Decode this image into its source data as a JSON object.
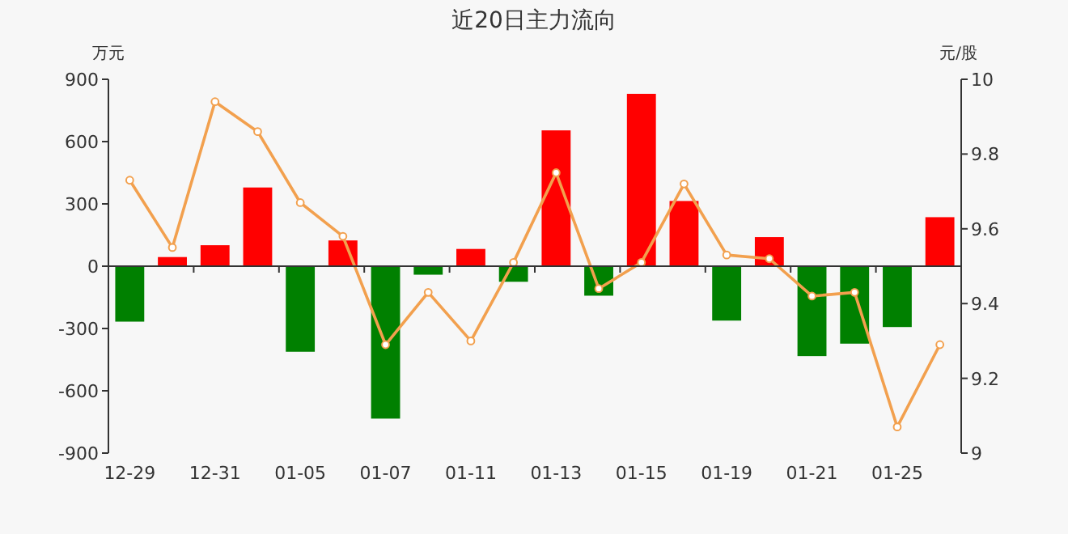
{
  "chart_data": {
    "type": "bar",
    "title": "近20日主力流向",
    "ylabel": "万元",
    "y2label": "元/股",
    "categories": [
      "12-29",
      null,
      "12-31",
      null,
      "01-05",
      null,
      "01-07",
      null,
      "01-11",
      null,
      "01-13",
      null,
      "01-15",
      null,
      "01-19",
      null,
      "01-21",
      null,
      "01-25",
      null
    ],
    "series": [
      {
        "colors": [
          "#008000",
          "#ff0000",
          "#ff0000",
          "#ff0000",
          "#008000",
          "#ff0000",
          "#008000",
          "#008000",
          "#ff0000",
          "#008000",
          "#ff0000",
          "#008000",
          "#ff0000",
          "#ff0000",
          "#008000",
          "#ff0000",
          "#008000",
          "#008000",
          "#008000",
          "#ff0000"
        ],
        "values": [
          -267,
          44,
          101,
          379,
          -412,
          124,
          -734,
          -41,
          83,
          -75,
          654,
          -142,
          830,
          314,
          -262,
          140,
          -433,
          -373,
          -293,
          236
        ]
      },
      {
        "type": "line",
        "axis": "y2",
        "color": "#f2a04e",
        "marker": "circle",
        "values": [
          9.73,
          9.55,
          9.94,
          9.86,
          9.67,
          9.58,
          9.29,
          9.43,
          9.3,
          9.51,
          9.75,
          9.44,
          9.51,
          9.72,
          9.53,
          9.52,
          9.42,
          9.43,
          9.07,
          9.29
        ]
      }
    ],
    "ylim": [
      -900,
      900
    ],
    "yticks": [
      -900,
      -600,
      -300,
      0,
      300,
      600,
      900
    ],
    "y2lim": [
      9,
      10
    ],
    "y2ticks": [
      9,
      9.2,
      9.4,
      9.6,
      9.8,
      10
    ]
  }
}
